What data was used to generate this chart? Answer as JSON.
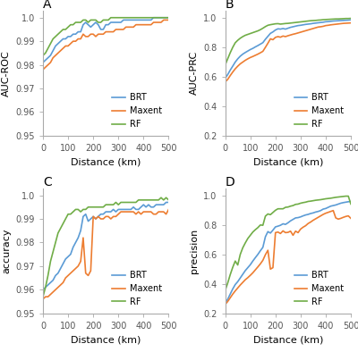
{
  "colors": {
    "BRT": "#5b9bd5",
    "Maxent": "#ed7d31",
    "RF": "#70ad47"
  },
  "x": [
    0,
    10,
    20,
    30,
    40,
    50,
    60,
    70,
    80,
    90,
    100,
    110,
    120,
    130,
    140,
    150,
    160,
    170,
    180,
    190,
    200,
    210,
    220,
    230,
    240,
    250,
    260,
    270,
    280,
    290,
    300,
    310,
    320,
    330,
    340,
    350,
    360,
    370,
    380,
    390,
    400,
    410,
    420,
    430,
    440,
    450,
    460,
    470,
    480,
    490,
    500
  ],
  "panel_A": {
    "title": "A",
    "ylabel": "AUC-ROC",
    "ylim": [
      0.95,
      1.003
    ],
    "yticks": [
      0.95,
      0.96,
      0.97,
      0.98,
      0.99,
      1.0
    ],
    "BRT": [
      0.981,
      0.982,
      0.983,
      0.984,
      0.986,
      0.988,
      0.989,
      0.99,
      0.991,
      0.991,
      0.992,
      0.992,
      0.993,
      0.993,
      0.994,
      0.994,
      0.997,
      0.998,
      0.997,
      0.996,
      0.997,
      0.998,
      0.997,
      0.995,
      0.995,
      0.997,
      0.997,
      0.998,
      0.998,
      0.998,
      0.998,
      0.998,
      0.999,
      0.999,
      0.999,
      0.999,
      0.999,
      0.999,
      0.999,
      0.999,
      0.999,
      0.999,
      0.999,
      0.999,
      1.0,
      1.0,
      1.0,
      1.0,
      1.0,
      1.0,
      1.0
    ],
    "Maxent": [
      0.978,
      0.979,
      0.98,
      0.981,
      0.983,
      0.984,
      0.985,
      0.986,
      0.987,
      0.988,
      0.988,
      0.989,
      0.99,
      0.99,
      0.991,
      0.991,
      0.993,
      0.992,
      0.992,
      0.993,
      0.993,
      0.992,
      0.993,
      0.993,
      0.993,
      0.994,
      0.994,
      0.994,
      0.994,
      0.995,
      0.995,
      0.995,
      0.995,
      0.996,
      0.996,
      0.996,
      0.996,
      0.997,
      0.997,
      0.997,
      0.997,
      0.997,
      0.997,
      0.997,
      0.998,
      0.998,
      0.998,
      0.998,
      0.999,
      0.999,
      0.999
    ],
    "RF": [
      0.984,
      0.985,
      0.987,
      0.989,
      0.991,
      0.992,
      0.993,
      0.994,
      0.995,
      0.995,
      0.996,
      0.997,
      0.997,
      0.998,
      0.998,
      0.998,
      0.999,
      0.999,
      0.998,
      0.999,
      0.999,
      0.999,
      0.998,
      0.998,
      0.999,
      0.999,
      0.999,
      1.0,
      1.0,
      1.0,
      1.0,
      1.0,
      1.0,
      1.0,
      1.0,
      1.0,
      1.0,
      1.0,
      1.0,
      1.0,
      1.0,
      1.0,
      1.0,
      1.0,
      1.0,
      1.0,
      1.0,
      1.0,
      1.0,
      1.0,
      1.0
    ]
  },
  "panel_B": {
    "title": "B",
    "ylabel": "AUC-PRC",
    "ylim": [
      0.2,
      1.05
    ],
    "yticks": [
      0.2,
      0.4,
      0.6,
      0.8,
      1.0
    ],
    "BRT": [
      0.59,
      0.615,
      0.645,
      0.672,
      0.7,
      0.722,
      0.74,
      0.754,
      0.765,
      0.775,
      0.785,
      0.793,
      0.803,
      0.812,
      0.822,
      0.832,
      0.855,
      0.875,
      0.895,
      0.905,
      0.918,
      0.926,
      0.924,
      0.928,
      0.924,
      0.93,
      0.936,
      0.94,
      0.944,
      0.948,
      0.95,
      0.953,
      0.956,
      0.958,
      0.96,
      0.963,
      0.965,
      0.967,
      0.969,
      0.971,
      0.974,
      0.975,
      0.977,
      0.979,
      0.98,
      0.981,
      0.982,
      0.983,
      0.984,
      0.985,
      0.987
    ],
    "Maxent": [
      0.565,
      0.582,
      0.608,
      0.632,
      0.654,
      0.672,
      0.688,
      0.7,
      0.712,
      0.722,
      0.731,
      0.738,
      0.746,
      0.754,
      0.763,
      0.773,
      0.8,
      0.828,
      0.858,
      0.852,
      0.868,
      0.873,
      0.869,
      0.877,
      0.873,
      0.879,
      0.884,
      0.889,
      0.893,
      0.898,
      0.903,
      0.908,
      0.913,
      0.918,
      0.923,
      0.928,
      0.933,
      0.938,
      0.94,
      0.943,
      0.948,
      0.95,
      0.953,
      0.955,
      0.957,
      0.959,
      0.961,
      0.963,
      0.964,
      0.965,
      0.966
    ],
    "RF": [
      0.68,
      0.722,
      0.763,
      0.8,
      0.831,
      0.848,
      0.862,
      0.873,
      0.882,
      0.888,
      0.894,
      0.9,
      0.906,
      0.912,
      0.92,
      0.93,
      0.941,
      0.95,
      0.954,
      0.957,
      0.96,
      0.961,
      0.958,
      0.96,
      0.962,
      0.963,
      0.965,
      0.967,
      0.969,
      0.971,
      0.973,
      0.975,
      0.977,
      0.979,
      0.981,
      0.982,
      0.983,
      0.985,
      0.986,
      0.988,
      0.989,
      0.99,
      0.991,
      0.992,
      0.993,
      0.993,
      0.994,
      0.995,
      0.996,
      0.996,
      0.997
    ]
  },
  "panel_C": {
    "title": "C",
    "ylabel": "accuracy",
    "ylim": [
      0.95,
      1.003
    ],
    "yticks": [
      0.95,
      0.96,
      0.97,
      0.98,
      0.99,
      1.0
    ],
    "BRT": [
      0.96,
      0.961,
      0.962,
      0.963,
      0.964,
      0.966,
      0.967,
      0.969,
      0.971,
      0.973,
      0.974,
      0.975,
      0.978,
      0.98,
      0.982,
      0.985,
      0.991,
      0.992,
      0.989,
      0.99,
      0.991,
      0.99,
      0.991,
      0.992,
      0.992,
      0.993,
      0.993,
      0.993,
      0.994,
      0.993,
      0.994,
      0.994,
      0.994,
      0.994,
      0.994,
      0.994,
      0.995,
      0.994,
      0.994,
      0.995,
      0.996,
      0.995,
      0.996,
      0.995,
      0.995,
      0.996,
      0.996,
      0.996,
      0.996,
      0.997,
      0.997
    ],
    "Maxent": [
      0.956,
      0.957,
      0.957,
      0.958,
      0.959,
      0.96,
      0.961,
      0.962,
      0.963,
      0.965,
      0.966,
      0.967,
      0.968,
      0.969,
      0.97,
      0.972,
      0.982,
      0.967,
      0.966,
      0.968,
      0.991,
      0.99,
      0.991,
      0.99,
      0.99,
      0.991,
      0.991,
      0.99,
      0.991,
      0.991,
      0.992,
      0.993,
      0.993,
      0.993,
      0.993,
      0.993,
      0.993,
      0.992,
      0.993,
      0.992,
      0.993,
      0.993,
      0.993,
      0.993,
      0.992,
      0.992,
      0.993,
      0.993,
      0.993,
      0.992,
      0.994
    ],
    "RF": [
      0.957,
      0.961,
      0.966,
      0.972,
      0.976,
      0.98,
      0.984,
      0.986,
      0.988,
      0.99,
      0.992,
      0.992,
      0.993,
      0.994,
      0.994,
      0.993,
      0.994,
      0.994,
      0.995,
      0.995,
      0.995,
      0.995,
      0.995,
      0.995,
      0.995,
      0.996,
      0.996,
      0.996,
      0.996,
      0.997,
      0.996,
      0.997,
      0.997,
      0.997,
      0.997,
      0.997,
      0.997,
      0.997,
      0.998,
      0.998,
      0.998,
      0.998,
      0.998,
      0.998,
      0.998,
      0.998,
      0.998,
      0.999,
      0.998,
      0.999,
      0.998
    ]
  },
  "panel_D": {
    "title": "D",
    "ylabel": "precision",
    "ylim": [
      0.2,
      1.05
    ],
    "yticks": [
      0.2,
      0.4,
      0.6,
      0.8,
      1.0
    ],
    "BRT": [
      0.27,
      0.295,
      0.33,
      0.365,
      0.395,
      0.415,
      0.44,
      0.465,
      0.49,
      0.51,
      0.53,
      0.555,
      0.578,
      0.6,
      0.625,
      0.648,
      0.72,
      0.755,
      0.745,
      0.765,
      0.787,
      0.792,
      0.798,
      0.808,
      0.804,
      0.815,
      0.828,
      0.838,
      0.848,
      0.85,
      0.855,
      0.862,
      0.868,
      0.872,
      0.878,
      0.882,
      0.888,
      0.892,
      0.898,
      0.908,
      0.912,
      0.92,
      0.928,
      0.932,
      0.936,
      0.942,
      0.948,
      0.952,
      0.955,
      0.958,
      0.96
    ],
    "Maxent": [
      0.26,
      0.28,
      0.305,
      0.33,
      0.352,
      0.372,
      0.392,
      0.41,
      0.428,
      0.442,
      0.458,
      0.475,
      0.495,
      0.515,
      0.536,
      0.56,
      0.598,
      0.628,
      0.5,
      0.51,
      0.748,
      0.752,
      0.742,
      0.76,
      0.748,
      0.75,
      0.758,
      0.73,
      0.758,
      0.748,
      0.772,
      0.785,
      0.795,
      0.81,
      0.82,
      0.832,
      0.842,
      0.852,
      0.862,
      0.872,
      0.88,
      0.886,
      0.892,
      0.898,
      0.848,
      0.84,
      0.845,
      0.852,
      0.858,
      0.862,
      0.845
    ],
    "RF": [
      0.355,
      0.405,
      0.462,
      0.512,
      0.555,
      0.528,
      0.6,
      0.645,
      0.678,
      0.708,
      0.73,
      0.752,
      0.768,
      0.782,
      0.8,
      0.798,
      0.86,
      0.875,
      0.87,
      0.885,
      0.9,
      0.91,
      0.91,
      0.91,
      0.92,
      0.922,
      0.928,
      0.932,
      0.94,
      0.942,
      0.948,
      0.952,
      0.955,
      0.96,
      0.962,
      0.965,
      0.968,
      0.97,
      0.972,
      0.975,
      0.978,
      0.98,
      0.982,
      0.985,
      0.988,
      0.99,
      0.992,
      0.994,
      0.996,
      0.996,
      0.942
    ]
  },
  "line_width": 1.2,
  "legend_fontsize": 7,
  "label_fontsize": 8,
  "tick_fontsize": 7,
  "title_fontsize": 10,
  "xlabel": "Distance (km)"
}
